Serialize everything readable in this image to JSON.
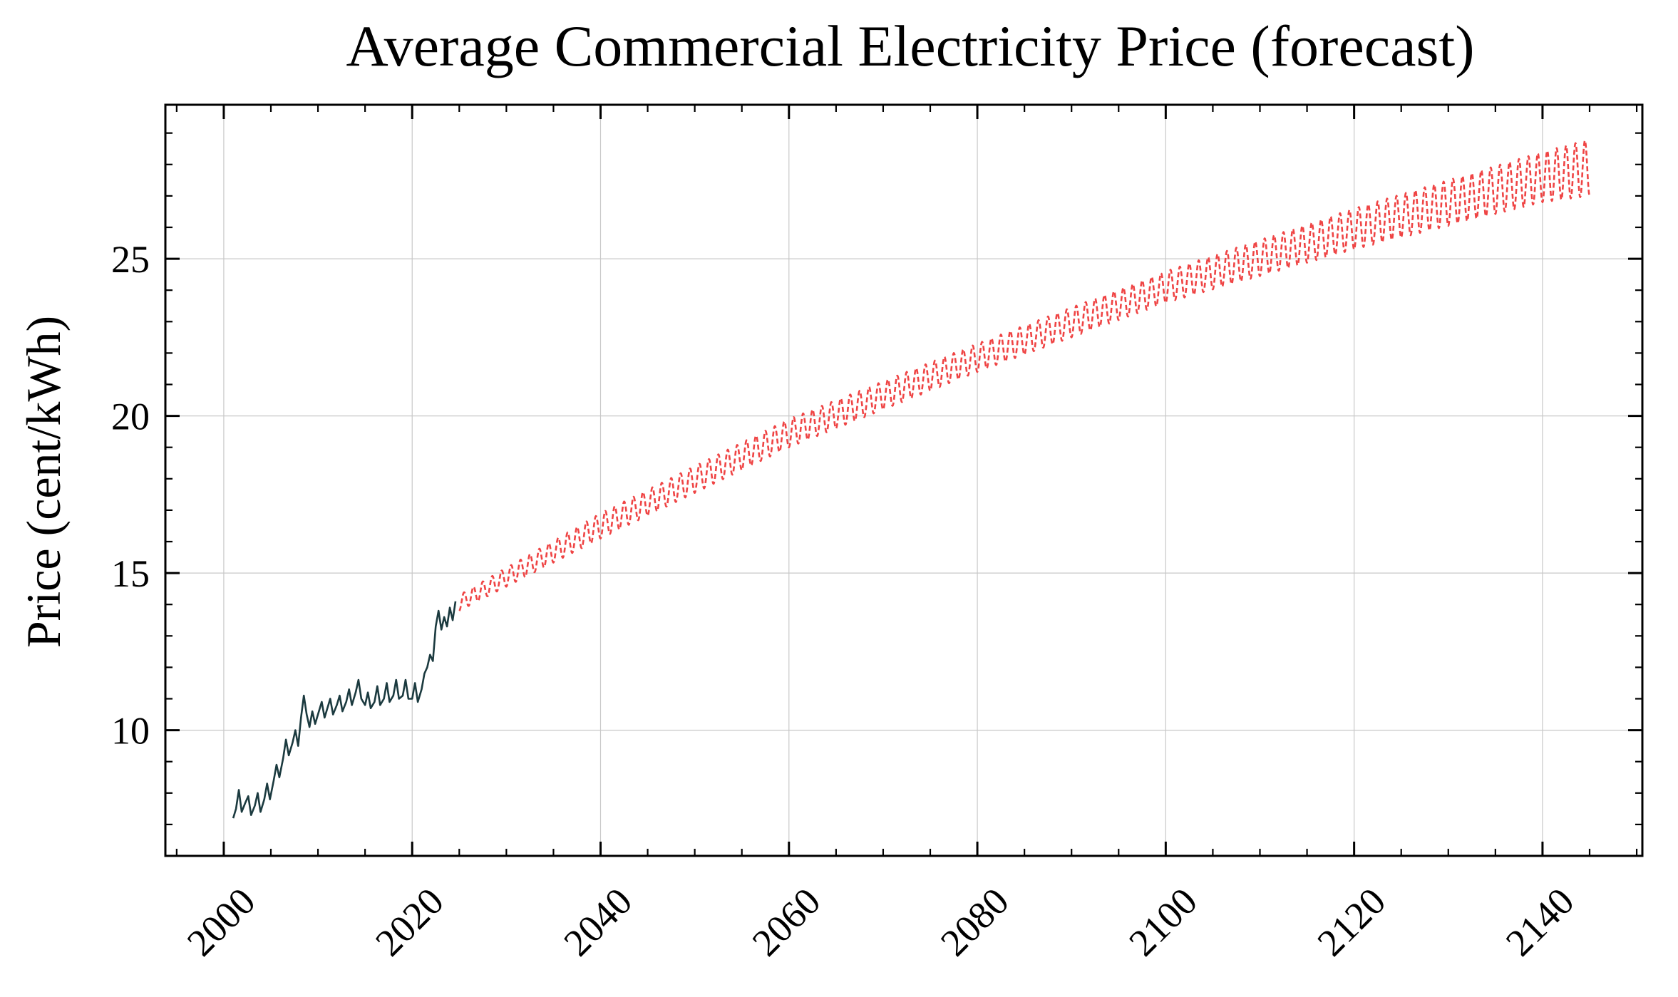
{
  "chart_data": {
    "type": "line",
    "title": "Average Commercial Electricity Price (forecast)",
    "xlabel": "",
    "ylabel": "Price (cent/kWh)",
    "xlim": [
      1993.8,
      2150.6
    ],
    "ylim": [
      6.0,
      29.9
    ],
    "xticks": [
      2000,
      2020,
      2040,
      2060,
      2080,
      2100,
      2120,
      2140
    ],
    "xtick_labels": [
      "2000",
      "2020",
      "2040",
      "2060",
      "2080",
      "2100",
      "2120",
      "2140"
    ],
    "yticks": [
      10,
      15,
      20,
      25
    ],
    "ytick_labels": [
      "10",
      "15",
      "20",
      "25"
    ],
    "grid": true,
    "legend": "none",
    "series": [
      {
        "style": "solid",
        "color": "#1b3a3f",
        "points": [
          [
            2001.0,
            7.2
          ],
          [
            2001.3,
            7.5
          ],
          [
            2001.6,
            8.1
          ],
          [
            2001.9,
            7.4
          ],
          [
            2002.3,
            7.7
          ],
          [
            2002.6,
            7.9
          ],
          [
            2002.9,
            7.3
          ],
          [
            2003.3,
            7.6
          ],
          [
            2003.6,
            8.0
          ],
          [
            2003.9,
            7.4
          ],
          [
            2004.3,
            7.8
          ],
          [
            2004.6,
            8.3
          ],
          [
            2004.9,
            7.8
          ],
          [
            2005.3,
            8.4
          ],
          [
            2005.6,
            8.9
          ],
          [
            2005.9,
            8.5
          ],
          [
            2006.3,
            9.1
          ],
          [
            2006.6,
            9.7
          ],
          [
            2006.9,
            9.2
          ],
          [
            2007.3,
            9.6
          ],
          [
            2007.6,
            10.0
          ],
          [
            2007.9,
            9.5
          ],
          [
            2008.2,
            10.4
          ],
          [
            2008.5,
            11.1
          ],
          [
            2008.8,
            10.5
          ],
          [
            2009.1,
            10.1
          ],
          [
            2009.4,
            10.6
          ],
          [
            2009.7,
            10.2
          ],
          [
            2010.0,
            10.5
          ],
          [
            2010.4,
            10.9
          ],
          [
            2010.7,
            10.4
          ],
          [
            2011.0,
            10.7
          ],
          [
            2011.3,
            11.0
          ],
          [
            2011.6,
            10.5
          ],
          [
            2012.0,
            10.8
          ],
          [
            2012.3,
            11.1
          ],
          [
            2012.6,
            10.6
          ],
          [
            2013.0,
            10.9
          ],
          [
            2013.3,
            11.3
          ],
          [
            2013.6,
            10.8
          ],
          [
            2014.0,
            11.2
          ],
          [
            2014.3,
            11.6
          ],
          [
            2014.6,
            11.0
          ],
          [
            2015.0,
            10.8
          ],
          [
            2015.3,
            11.2
          ],
          [
            2015.6,
            10.7
          ],
          [
            2016.0,
            10.9
          ],
          [
            2016.3,
            11.4
          ],
          [
            2016.6,
            10.8
          ],
          [
            2017.0,
            11.0
          ],
          [
            2017.3,
            11.5
          ],
          [
            2017.6,
            10.9
          ],
          [
            2018.0,
            11.1
          ],
          [
            2018.3,
            11.6
          ],
          [
            2018.6,
            11.0
          ],
          [
            2019.0,
            11.1
          ],
          [
            2019.3,
            11.6
          ],
          [
            2019.6,
            11.0
          ],
          [
            2020.0,
            11.0
          ],
          [
            2020.3,
            11.5
          ],
          [
            2020.6,
            10.9
          ],
          [
            2021.0,
            11.3
          ],
          [
            2021.3,
            11.8
          ],
          [
            2021.6,
            12.0
          ],
          [
            2021.9,
            12.4
          ],
          [
            2022.2,
            12.2
          ],
          [
            2022.5,
            13.3
          ],
          [
            2022.8,
            13.8
          ],
          [
            2023.1,
            13.2
          ],
          [
            2023.4,
            13.6
          ],
          [
            2023.7,
            13.3
          ],
          [
            2024.0,
            13.9
          ],
          [
            2024.3,
            13.5
          ],
          [
            2024.6,
            14.1
          ]
        ]
      },
      {
        "style": "dashed",
        "color": "#ef4444",
        "period_years": 1.0,
        "lower_trend": [
          [
            2025.0,
            13.8
          ],
          [
            2040.0,
            16.1
          ],
          [
            2060.0,
            19.0
          ],
          [
            2080.0,
            21.4
          ],
          [
            2100.0,
            23.6
          ],
          [
            2120.0,
            25.3
          ],
          [
            2140.0,
            26.8
          ],
          [
            2145.0,
            27.0
          ]
        ],
        "upper_trend": [
          [
            2025.0,
            14.3
          ],
          [
            2040.0,
            16.9
          ],
          [
            2060.0,
            19.9
          ],
          [
            2080.0,
            22.3
          ],
          [
            2100.0,
            24.6
          ],
          [
            2120.0,
            26.6
          ],
          [
            2140.0,
            28.4
          ],
          [
            2145.0,
            28.8
          ]
        ]
      }
    ]
  }
}
